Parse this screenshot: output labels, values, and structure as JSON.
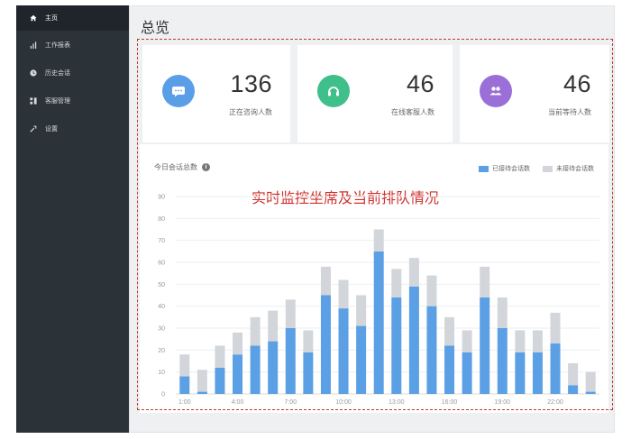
{
  "sidebar": {
    "items": [
      {
        "label": "主页",
        "icon": "home-icon",
        "active": true
      },
      {
        "label": "工作报表",
        "icon": "bar-chart-icon",
        "active": false
      },
      {
        "label": "历史会话",
        "icon": "clock-icon",
        "active": false
      },
      {
        "label": "客服管理",
        "icon": "grid-icon",
        "active": false
      },
      {
        "label": "设置",
        "icon": "wrench-icon",
        "active": false
      }
    ]
  },
  "page": {
    "title": "总览"
  },
  "stats": [
    {
      "value": "136",
      "label": "正在咨询人数",
      "icon": "chat-icon",
      "color": "#5b9ee8"
    },
    {
      "value": "46",
      "label": "在线客服人数",
      "icon": "headset-icon",
      "color": "#3fbf89"
    },
    {
      "value": "46",
      "label": "当前等待人数",
      "icon": "users-icon",
      "color": "#9a6fd8"
    }
  ],
  "chart": {
    "title": "今日会话总数",
    "annotation": "实时监控坐席及当前排队情况",
    "colors": {
      "received": "#5b9fe5",
      "unreceived": "#d2d6da"
    }
  },
  "chart_data": {
    "type": "bar",
    "stacked": true,
    "ylim": [
      0,
      90
    ],
    "yticks": [
      0,
      10,
      20,
      30,
      40,
      50,
      60,
      70,
      80,
      90
    ],
    "x": [
      1,
      2,
      3,
      4,
      5,
      6,
      7,
      8,
      9,
      10,
      11,
      12,
      13,
      14,
      15,
      16,
      17,
      18,
      19,
      20,
      21,
      22,
      23,
      24
    ],
    "xtick_labels": [
      {
        "at": 1,
        "label": "1:00"
      },
      {
        "at": 4,
        "label": "4:00"
      },
      {
        "at": 7,
        "label": "7:00"
      },
      {
        "at": 10,
        "label": "10:00"
      },
      {
        "at": 13,
        "label": "13:00"
      },
      {
        "at": 16,
        "label": "16:00"
      },
      {
        "at": 19,
        "label": "19:00"
      },
      {
        "at": 22,
        "label": "22:00"
      }
    ],
    "series": [
      {
        "name": "已接待会话数",
        "values": [
          8,
          1,
          12,
          18,
          22,
          24,
          30,
          19,
          45,
          39,
          31,
          65,
          44,
          49,
          40,
          22,
          19,
          44,
          30,
          19,
          19,
          23,
          4,
          1
        ]
      },
      {
        "name": "未接待会话数",
        "values": [
          10,
          10,
          10,
          10,
          13,
          14,
          13,
          10,
          13,
          13,
          14,
          10,
          13,
          13,
          14,
          13,
          10,
          14,
          14,
          10,
          10,
          14,
          10,
          9
        ]
      }
    ]
  }
}
